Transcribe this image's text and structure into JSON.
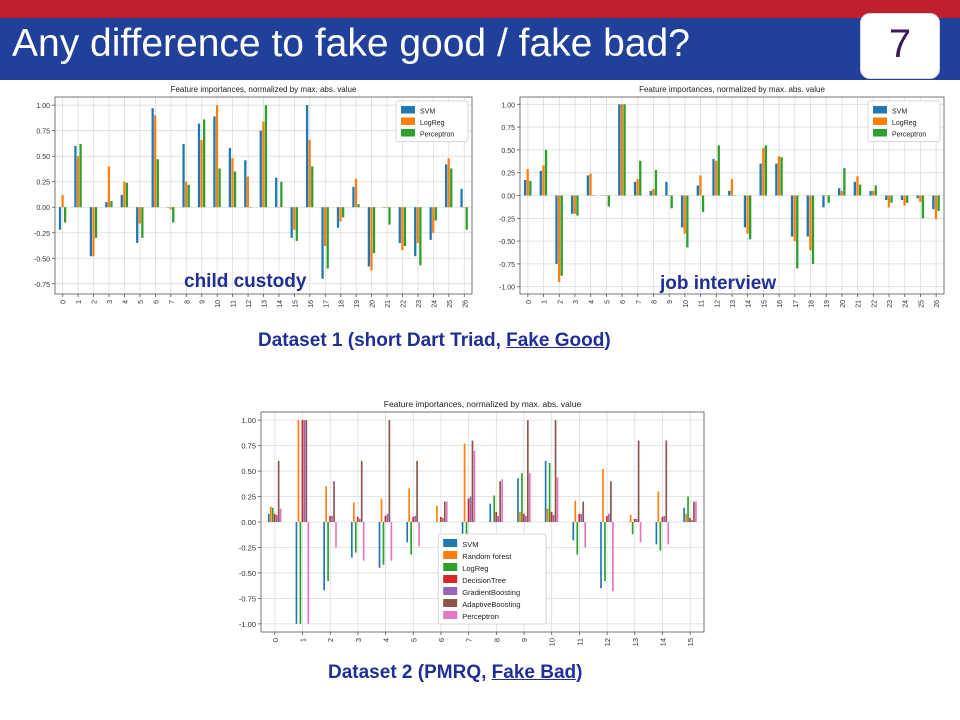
{
  "slide": {
    "title": "Any difference to fake good / fake bad?",
    "page_number": "7",
    "accent_red": "#c0202e",
    "accent_blue": "#21409a"
  },
  "labels": {
    "left_chart": "child custody",
    "right_chart": "job interview"
  },
  "captions": {
    "dataset1_pre": "Dataset 1 (short Dart Triad, ",
    "dataset1_link": "Fake Good",
    "dataset1_post": ")",
    "dataset2_pre": "Dataset 2 (PMRQ, ",
    "dataset2_link": "Fake Bad",
    "dataset2_post": ")"
  },
  "chart_data": [
    {
      "type": "bar",
      "title": "Feature importances, normalized by max. abs. value",
      "categories": [
        "0",
        "1",
        "2",
        "3",
        "4",
        "5",
        "6",
        "7",
        "8",
        "9",
        "10",
        "11",
        "12",
        "13",
        "14",
        "15",
        "16",
        "17",
        "18",
        "19",
        "20",
        "21",
        "22",
        "23",
        "24",
        "25",
        "26"
      ],
      "ylim": [
        -0.85,
        1.08
      ],
      "yticks": [
        -0.75,
        -0.5,
        -0.25,
        0.0,
        0.25,
        0.5,
        0.75,
        1.0
      ],
      "ytick_labels": [
        "-0.75",
        "-0.50",
        "-0.25",
        "0.00",
        "0.25",
        "0.50",
        "0.75",
        "1.00"
      ],
      "grid": true,
      "legend_position": "top-right",
      "series": [
        {
          "name": "SVM",
          "color": "#1f77b4",
          "values": [
            -0.22,
            0.6,
            -0.48,
            0.05,
            0.12,
            -0.35,
            0.97,
            0.0,
            0.62,
            0.82,
            0.89,
            0.58,
            0.46,
            0.75,
            0.29,
            -0.3,
            1.0,
            -0.7,
            -0.2,
            0.2,
            -0.58,
            0.0,
            -0.35,
            -0.48,
            -0.32,
            0.42,
            0.18
          ]
        },
        {
          "name": "LogReg",
          "color": "#ff7f0e",
          "values": [
            0.12,
            0.5,
            -0.48,
            0.4,
            0.25,
            -0.16,
            0.9,
            -0.02,
            0.25,
            0.66,
            1.0,
            0.48,
            0.3,
            0.84,
            0.0,
            -0.22,
            0.66,
            -0.38,
            -0.14,
            0.28,
            -0.62,
            0.0,
            -0.42,
            -0.35,
            -0.25,
            0.48,
            0.0
          ]
        },
        {
          "name": "Perceptron",
          "color": "#2ca02c",
          "values": [
            -0.15,
            0.62,
            -0.3,
            0.06,
            0.24,
            -0.3,
            0.47,
            -0.15,
            0.22,
            0.86,
            0.38,
            0.35,
            0.0,
            1.0,
            0.25,
            -0.33,
            0.4,
            -0.6,
            -0.1,
            0.03,
            -0.45,
            -0.17,
            -0.38,
            -0.57,
            -0.13,
            0.38,
            -0.22
          ]
        }
      ]
    },
    {
      "type": "bar",
      "title": "Feature importances, normalized by max. abs. value",
      "categories": [
        "0",
        "1",
        "2",
        "3",
        "4",
        "5",
        "6",
        "7",
        "8",
        "9",
        "10",
        "11",
        "12",
        "13",
        "14",
        "15",
        "16",
        "17",
        "18",
        "19",
        "20",
        "21",
        "22",
        "23",
        "24",
        "25",
        "26"
      ],
      "ylim": [
        -1.08,
        1.08
      ],
      "yticks": [
        -1.0,
        -0.75,
        -0.5,
        -0.25,
        0.0,
        0.25,
        0.5,
        0.75,
        1.0
      ],
      "ytick_labels": [
        "-1.00",
        "-0.75",
        "-0.50",
        "-0.25",
        "0.00",
        "0.25",
        "0.50",
        "0.75",
        "1.00"
      ],
      "grid": true,
      "legend_position": "top-right",
      "series": [
        {
          "name": "SVM",
          "color": "#1f77b4",
          "values": [
            0.17,
            0.27,
            -0.75,
            -0.2,
            0.22,
            0.0,
            1.0,
            0.15,
            0.05,
            0.15,
            -0.35,
            0.11,
            0.4,
            0.05,
            -0.35,
            0.35,
            0.35,
            -0.45,
            -0.45,
            -0.13,
            0.08,
            0.15,
            0.05,
            -0.05,
            -0.05,
            -0.03,
            -0.15
          ]
        },
        {
          "name": "LogReg",
          "color": "#ff7f0e",
          "values": [
            0.29,
            0.33,
            -0.95,
            -0.2,
            0.24,
            0.0,
            1.0,
            0.18,
            0.07,
            0.0,
            -0.42,
            0.22,
            0.38,
            0.18,
            -0.42,
            0.52,
            0.43,
            -0.5,
            -0.6,
            0.0,
            0.05,
            0.21,
            0.05,
            -0.13,
            -0.11,
            -0.07,
            -0.26
          ]
        },
        {
          "name": "Perceptron",
          "color": "#2ca02c",
          "values": [
            0.16,
            0.5,
            -0.88,
            -0.22,
            0.0,
            -0.12,
            1.0,
            0.38,
            0.28,
            -0.14,
            -0.57,
            -0.18,
            0.55,
            0.0,
            -0.48,
            0.55,
            0.42,
            -0.8,
            -0.75,
            -0.08,
            0.3,
            0.12,
            0.11,
            -0.08,
            -0.08,
            -0.25,
            -0.17
          ]
        }
      ]
    },
    {
      "type": "bar",
      "title": "Feature importances, normalized by max. abs. value",
      "categories": [
        "0",
        "1",
        "2",
        "3",
        "4",
        "5",
        "6",
        "7",
        "8",
        "9",
        "10",
        "11",
        "12",
        "13",
        "14",
        "15"
      ],
      "ylim": [
        -1.08,
        1.08
      ],
      "yticks": [
        -1.0,
        -0.75,
        -0.5,
        -0.25,
        0.0,
        0.25,
        0.5,
        0.75,
        1.0
      ],
      "ytick_labels": [
        "-1.00",
        "-0.75",
        "-0.50",
        "-0.25",
        "0.00",
        "0.25",
        "0.50",
        "0.75",
        "1.00"
      ],
      "grid": true,
      "legend_position": "bottom-left",
      "series": [
        {
          "name": "SVM",
          "color": "#1f77b4",
          "values": [
            0.08,
            -1.0,
            -0.67,
            -0.35,
            -0.45,
            -0.2,
            0.0,
            -0.18,
            0.18,
            0.43,
            0.6,
            -0.18,
            -0.65,
            0.0,
            -0.22,
            0.14
          ]
        },
        {
          "name": "Random forest",
          "color": "#ff7f0e",
          "values": [
            0.15,
            1.0,
            0.35,
            0.19,
            0.23,
            0.33,
            0.16,
            0.77,
            0.0,
            0.1,
            0.13,
            0.21,
            0.52,
            0.07,
            0.3,
            0.08
          ]
        },
        {
          "name": "LogReg",
          "color": "#2ca02c",
          "values": [
            0.14,
            -1.0,
            -0.58,
            -0.3,
            -0.42,
            -0.32,
            0.0,
            -0.2,
            0.26,
            0.48,
            0.58,
            -0.32,
            -0.58,
            -0.12,
            -0.28,
            0.25
          ]
        },
        {
          "name": "DecisionTree",
          "color": "#d62728",
          "values": [
            0.08,
            1.0,
            0.06,
            0.05,
            0.06,
            0.05,
            0.05,
            0.23,
            0.1,
            0.08,
            0.1,
            0.08,
            0.06,
            0.03,
            0.05,
            0.04
          ]
        },
        {
          "name": "GradientBoosting",
          "color": "#9467bd",
          "values": [
            0.07,
            1.0,
            0.06,
            0.03,
            0.08,
            0.06,
            0.04,
            0.25,
            0.06,
            0.06,
            0.07,
            0.08,
            0.08,
            0.03,
            0.06,
            0.02
          ]
        },
        {
          "name": "AdaptiveBoosting",
          "color": "#8c564b",
          "values": [
            0.6,
            1.0,
            0.4,
            0.6,
            1.0,
            0.6,
            0.2,
            0.8,
            0.4,
            1.0,
            1.0,
            0.2,
            0.4,
            0.8,
            0.8,
            0.2
          ]
        },
        {
          "name": "Perceptron",
          "color": "#e377c2",
          "values": [
            0.13,
            -1.0,
            -0.25,
            -0.38,
            -0.38,
            -0.24,
            0.2,
            0.7,
            0.42,
            0.48,
            0.44,
            -0.25,
            -0.68,
            -0.2,
            -0.22,
            0.2
          ]
        }
      ]
    }
  ]
}
